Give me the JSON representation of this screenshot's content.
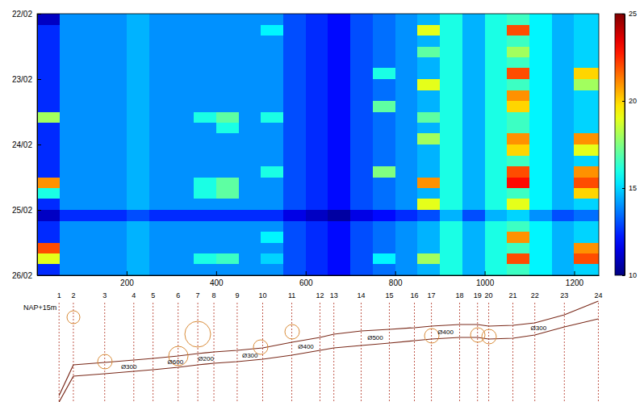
{
  "chart_data": {
    "type": "heatmap",
    "xlim": [
      0,
      1255
    ],
    "xticks": [
      200,
      400,
      600,
      800,
      1000,
      1200
    ],
    "ylim": [
      22,
      26
    ],
    "yticks": [
      {
        "value": 22,
        "label": "22/02"
      },
      {
        "value": 23,
        "label": "23/02"
      },
      {
        "value": 24,
        "label": "24/02"
      },
      {
        "value": 25,
        "label": "25/02"
      },
      {
        "value": 26,
        "label": "26/02"
      }
    ],
    "x_edges": [
      0,
      50,
      100,
      150,
      200,
      250,
      300,
      350,
      400,
      450,
      500,
      550,
      600,
      650,
      700,
      750,
      800,
      850,
      900,
      950,
      1000,
      1050,
      1100,
      1150,
      1200,
      1255
    ],
    "y_edges": [
      22,
      22.1667,
      22.3333,
      22.5,
      22.6667,
      22.8333,
      23,
      23.1667,
      23.3333,
      23.5,
      23.6667,
      23.8333,
      24,
      24.1667,
      24.3333,
      24.5,
      24.6667,
      24.8333,
      25,
      25.1667,
      25.3333,
      25.5,
      25.6667,
      25.8333,
      26
    ],
    "cells": [
      [
        11,
        14,
        14,
        14,
        14.5,
        14,
        14,
        14,
        14,
        14,
        14,
        13,
        12.5,
        12,
        13,
        13.5,
        14,
        14.5,
        16,
        14.5,
        16,
        16.5,
        15.5,
        14.5,
        15
      ],
      [
        12.5,
        14,
        14,
        14,
        14.5,
        14,
        14,
        14,
        14,
        14,
        15.5,
        13,
        12.5,
        12,
        13,
        13.5,
        14,
        19,
        16,
        14.5,
        16,
        22,
        15.5,
        14.5,
        15
      ],
      [
        12.5,
        14,
        14,
        14,
        14.5,
        14,
        14,
        14,
        14,
        14,
        14,
        13,
        12.5,
        12,
        13,
        13.5,
        14,
        14.5,
        16,
        14.5,
        16,
        16.5,
        15.5,
        14.5,
        15
      ],
      [
        12.5,
        14,
        14,
        14,
        14.5,
        14,
        14,
        14,
        14,
        14,
        14,
        13,
        12.5,
        12,
        13,
        13.5,
        14,
        17,
        16,
        14.5,
        16,
        18,
        15.5,
        14.5,
        15
      ],
      [
        12.5,
        14,
        14,
        14,
        14.5,
        14,
        14,
        14,
        14,
        14,
        14,
        13,
        12.5,
        12,
        13,
        13.5,
        14,
        14.5,
        16,
        14.5,
        16,
        16.5,
        15.5,
        14.5,
        15
      ],
      [
        12.5,
        14,
        14,
        14,
        14.5,
        14,
        14,
        14,
        14,
        14,
        14,
        13,
        12.5,
        12,
        13,
        16,
        14,
        14.5,
        16,
        14.5,
        16,
        22,
        15.5,
        14.5,
        20
      ],
      [
        12.5,
        14,
        14,
        14,
        14.5,
        14,
        14,
        14,
        14,
        14,
        14,
        13,
        12.5,
        12,
        13,
        13.5,
        14,
        19,
        16,
        14.5,
        16,
        16.5,
        15.5,
        14.5,
        18
      ],
      [
        12.5,
        14,
        14,
        14,
        14.5,
        14,
        14,
        14,
        14,
        14,
        14,
        13,
        12.5,
        12,
        13,
        13.5,
        14,
        14.5,
        16,
        14.5,
        16,
        21,
        15.5,
        14.5,
        15
      ],
      [
        12.5,
        14,
        14,
        14,
        14.5,
        14,
        14,
        14,
        14,
        14,
        14,
        13,
        12.5,
        12,
        13,
        17,
        14,
        14.5,
        16,
        14.5,
        16,
        20,
        15.5,
        14.5,
        15
      ],
      [
        18,
        14,
        14,
        14,
        14.5,
        14,
        14,
        16,
        17,
        14,
        16,
        13,
        12.5,
        12,
        13,
        13.5,
        14,
        17,
        16,
        14.5,
        16,
        16.5,
        15.5,
        14.5,
        15
      ],
      [
        12.5,
        14,
        14,
        14,
        14.5,
        14,
        14,
        14,
        16,
        14,
        14,
        13,
        12.5,
        12,
        13,
        13.5,
        14,
        14.5,
        16,
        14.5,
        16,
        16.5,
        15.5,
        14.5,
        15
      ],
      [
        12.5,
        14,
        14,
        14,
        14.5,
        14,
        14,
        14,
        14,
        14,
        14,
        13,
        12.5,
        12,
        13,
        13.5,
        14,
        18,
        16,
        14.5,
        16,
        21,
        15.5,
        14.5,
        21
      ],
      [
        12.5,
        14,
        14,
        14,
        14.5,
        14,
        14,
        14,
        14,
        14,
        14,
        13,
        12.5,
        12,
        13,
        13.5,
        14,
        14.5,
        16,
        14.5,
        16,
        20,
        15.5,
        14.5,
        19
      ],
      [
        12.5,
        14,
        14,
        14,
        14.5,
        14,
        14,
        14,
        14,
        14,
        14,
        13,
        12.5,
        12,
        13,
        13.5,
        14,
        14.5,
        16,
        14.5,
        16,
        16.5,
        15.5,
        14.5,
        15
      ],
      [
        12.5,
        14,
        14,
        14,
        14.5,
        14,
        14,
        14,
        14,
        14,
        16,
        13,
        12.5,
        12,
        13,
        17.5,
        14,
        14.5,
        16,
        14.5,
        16,
        22,
        15.5,
        14.5,
        21
      ],
      [
        21,
        14,
        14,
        14,
        14.5,
        14,
        14,
        16,
        17,
        14,
        14,
        13,
        12.5,
        12,
        13,
        13.5,
        14,
        21,
        16,
        14.5,
        16,
        23,
        15.5,
        14.5,
        22
      ],
      [
        16,
        14,
        14,
        14,
        14.5,
        14,
        14,
        16,
        17,
        14,
        14,
        13,
        12.5,
        12,
        13,
        13.5,
        14,
        14.5,
        16,
        14.5,
        16,
        16.5,
        15.5,
        14.5,
        20
      ],
      [
        12.5,
        14,
        14,
        14,
        14.5,
        14,
        14,
        14,
        14,
        14,
        14,
        13,
        12.5,
        12,
        13,
        13.5,
        14,
        19,
        16,
        14.5,
        16,
        19,
        15.5,
        14.5,
        15
      ],
      [
        11,
        12.5,
        12.5,
        12.5,
        13,
        12.5,
        12.5,
        12.5,
        12.5,
        12.5,
        12.5,
        11.5,
        11,
        10.5,
        11.5,
        12,
        12.5,
        13,
        14.5,
        13,
        14.5,
        15,
        14,
        13,
        13.5
      ],
      [
        12.5,
        14,
        14,
        14,
        14.5,
        14,
        14,
        14,
        14,
        14,
        14,
        13,
        12.5,
        12,
        13,
        13.5,
        14,
        14.5,
        16,
        14.5,
        16,
        16.5,
        15.5,
        14.5,
        15
      ],
      [
        12.5,
        14,
        14,
        14,
        14.5,
        14,
        14,
        14,
        14,
        14,
        15.5,
        13,
        12.5,
        12,
        13,
        13.5,
        14,
        14.5,
        16,
        14.5,
        16,
        21,
        15.5,
        14.5,
        15
      ],
      [
        22,
        14,
        14,
        14,
        14.5,
        14,
        14,
        14,
        14,
        14,
        14,
        13,
        12.5,
        12,
        13,
        13.5,
        14,
        14.5,
        16,
        14.5,
        16,
        16.5,
        15.5,
        14.5,
        21
      ],
      [
        19,
        14,
        14,
        14,
        14.5,
        14,
        14,
        16,
        16.5,
        14,
        15,
        13,
        12.5,
        12,
        13,
        15.5,
        14,
        18,
        16,
        14.5,
        16,
        22,
        15.5,
        14.5,
        22
      ],
      [
        12.5,
        14,
        14,
        14,
        14.5,
        14,
        14,
        14,
        14,
        14,
        14,
        13,
        12.5,
        12,
        13,
        13.5,
        14,
        14.5,
        16,
        14.5,
        16,
        16.5,
        15.5,
        14.5,
        15
      ]
    ],
    "colorbar": {
      "range": [
        10,
        25
      ],
      "ticks": [
        10,
        15,
        20,
        25
      ]
    }
  },
  "profile": {
    "datum_label": "NAP+15m",
    "manholes": [
      {
        "label": "1",
        "x": 49
      },
      {
        "label": "2",
        "x": 81
      },
      {
        "label": "3",
        "x": 151
      },
      {
        "label": "4",
        "x": 216
      },
      {
        "label": "5",
        "x": 259
      },
      {
        "label": "6",
        "x": 315
      },
      {
        "label": "7",
        "x": 359
      },
      {
        "label": "8",
        "x": 395
      },
      {
        "label": "9",
        "x": 447
      },
      {
        "label": "10",
        "x": 504
      },
      {
        "label": "11",
        "x": 569
      },
      {
        "label": "12",
        "x": 632
      },
      {
        "label": "13",
        "x": 663
      },
      {
        "label": "14",
        "x": 724
      },
      {
        "label": "15",
        "x": 787
      },
      {
        "label": "16",
        "x": 843
      },
      {
        "label": "17",
        "x": 881
      },
      {
        "label": "18",
        "x": 944
      },
      {
        "label": "19",
        "x": 984
      },
      {
        "label": "20",
        "x": 1009
      },
      {
        "label": "21",
        "x": 1063
      },
      {
        "label": "22",
        "x": 1112
      },
      {
        "label": "23",
        "x": 1178
      },
      {
        "label": "24",
        "x": 1254
      }
    ],
    "pipes": [
      {
        "label": "Ø300",
        "from": 3,
        "to": 5
      },
      {
        "label": "Ø600",
        "from": 5,
        "to": 7
      },
      {
        "label": "Ø200",
        "from": 7,
        "to": 8
      },
      {
        "label": "Ø300",
        "from": 9,
        "to": 10
      },
      {
        "label": "Ø400",
        "from": 11,
        "to": 12
      },
      {
        "label": "Ø500",
        "from": 14,
        "to": 15
      },
      {
        "label": "Ø400",
        "from": 17,
        "to": 18
      },
      {
        "label": "Ø300",
        "from": 21,
        "to": 23
      }
    ]
  }
}
